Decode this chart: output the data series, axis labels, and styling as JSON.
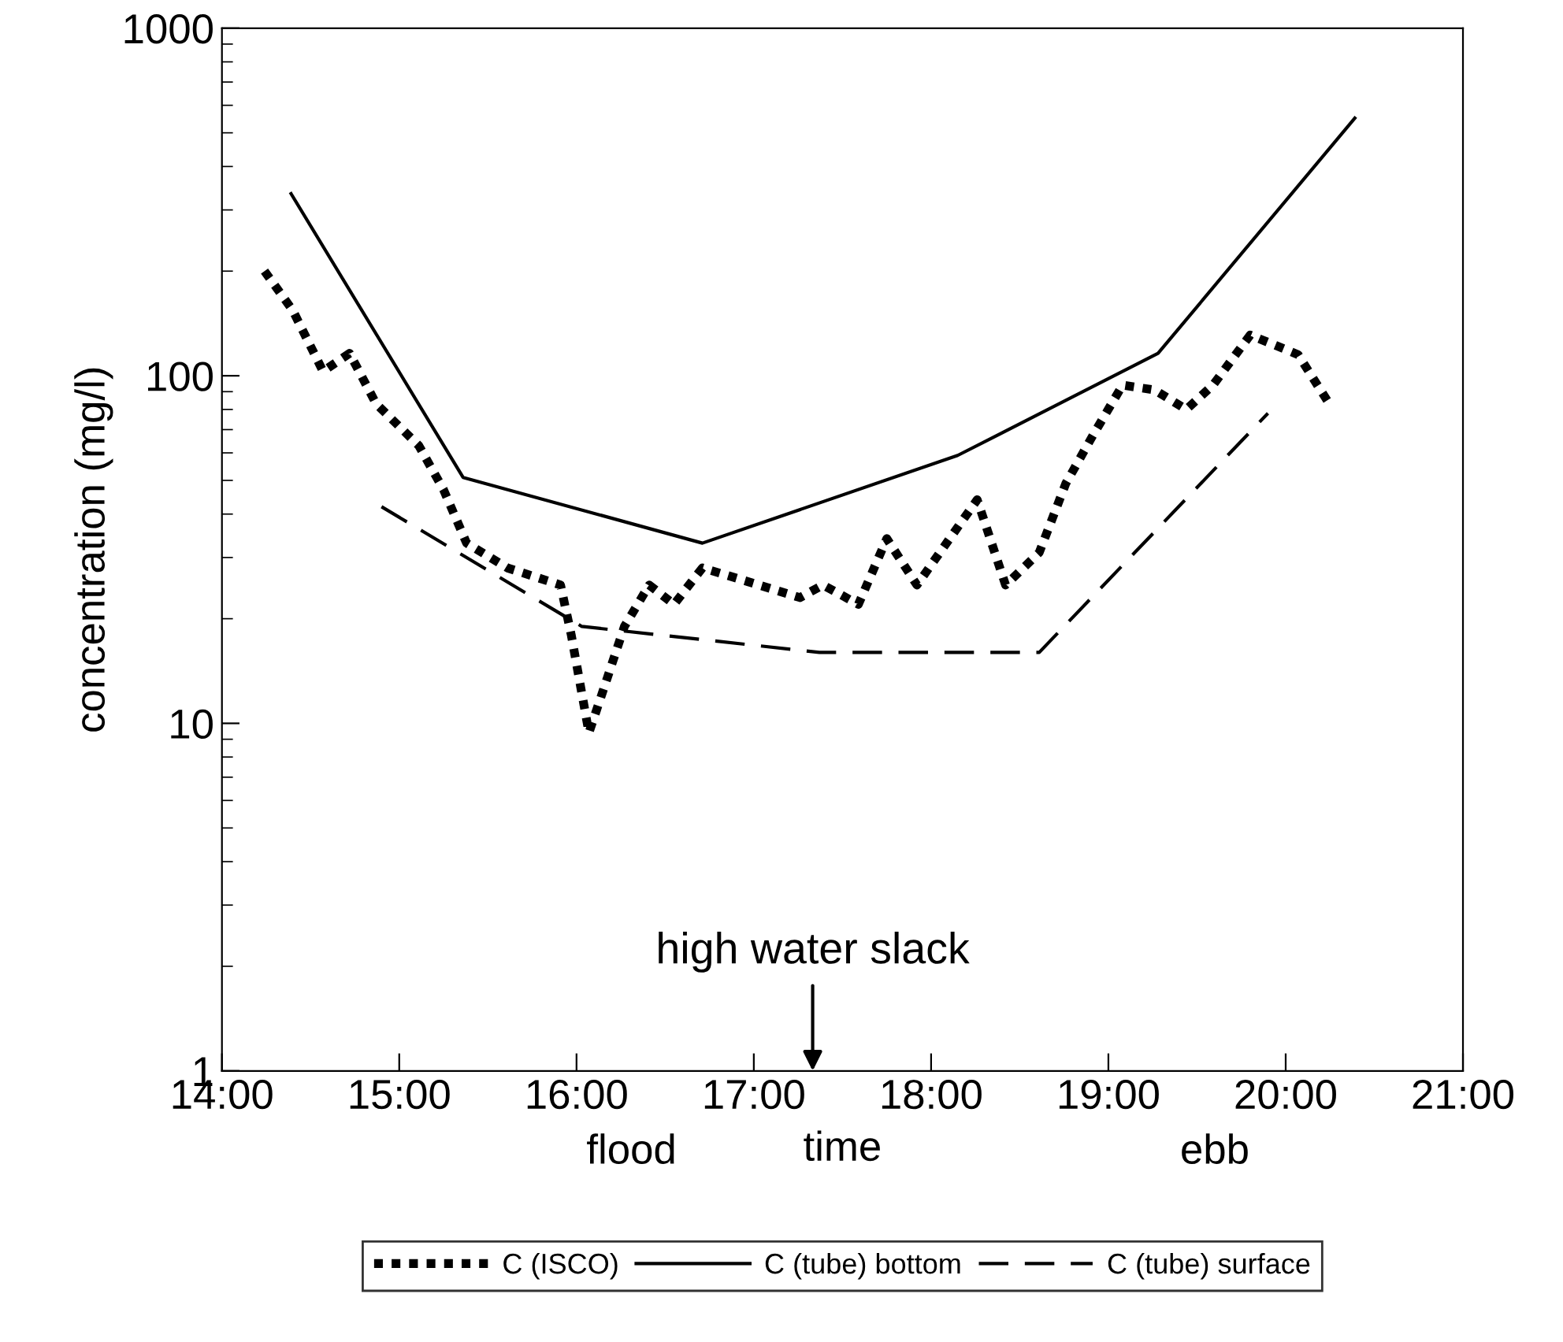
{
  "chart_data": {
    "type": "line",
    "ylabel": "concentration (mg/l)",
    "xlabel": "time",
    "log": "y",
    "xlim": [
      14,
      21
    ],
    "ylim": [
      1,
      1000
    ],
    "xticks": [
      {
        "value": 14,
        "label": "14:00"
      },
      {
        "value": 15,
        "label": "15:00"
      },
      {
        "value": 16,
        "label": "16:00"
      },
      {
        "value": 17,
        "label": "17:00"
      },
      {
        "value": 18,
        "label": "18:00"
      },
      {
        "value": 19,
        "label": "19:00"
      },
      {
        "value": 20,
        "label": "20:00"
      },
      {
        "value": 21,
        "label": "21:00"
      }
    ],
    "yticks": [
      1,
      10,
      100,
      1000
    ],
    "grid": false,
    "legend": "bottom",
    "annotations": [
      "high water slack",
      "flood",
      "ebb"
    ],
    "series": [
      {
        "name": "C (ISCO)",
        "color": "#000000",
        "line_style": "dotted",
        "x": [
          14.24,
          14.4,
          14.57,
          14.72,
          14.87,
          15.11,
          15.25,
          15.38,
          15.61,
          15.91,
          15.97,
          16.07,
          16.14,
          16.27,
          16.41,
          16.55,
          16.71,
          16.92,
          17.26,
          17.39,
          17.59,
          17.75,
          17.92,
          18.26,
          18.42,
          18.61,
          18.76,
          18.91,
          19.08,
          19.26,
          19.44,
          19.59,
          19.8,
          20.07,
          20.24
        ],
        "values": [
          200,
          154,
          103,
          116,
          83,
          63,
          47,
          33,
          28,
          25,
          18,
          9.4,
          12,
          19,
          25,
          22,
          28,
          26,
          23,
          25,
          22,
          34,
          25,
          44,
          25,
          31,
          49,
          67,
          94,
          91,
          80,
          94,
          131,
          115,
          84
        ]
      },
      {
        "name": "C (tube) bottom",
        "color": "#000000",
        "line_style": "solid",
        "x": [
          14.39,
          15.36,
          16.71,
          18.15,
          19.28,
          20.39
        ],
        "values": [
          334,
          51,
          33,
          59,
          116,
          551
        ]
      },
      {
        "name": "C (tube) surface",
        "color": "#000000",
        "line_style": "dashed",
        "x": [
          14.9,
          16.03,
          17.37,
          18.61,
          19.9
        ],
        "values": [
          42,
          19,
          16,
          16,
          78
        ]
      }
    ]
  }
}
